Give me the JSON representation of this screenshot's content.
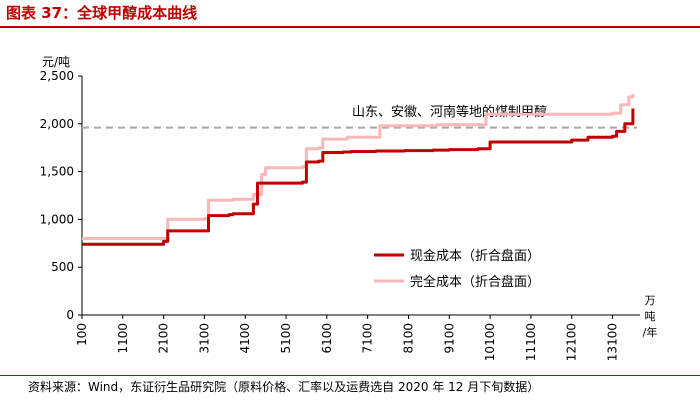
{
  "header": {
    "title": "图表 37：全球甲醇成本曲线"
  },
  "footer": {
    "source": "资料来源：Wind，东证衍生品研究院（原料价格、汇率以及运费选自 2020 年 12 月下旬数据）"
  },
  "colors": {
    "title": "#c00000",
    "cash_cost": "#c00000",
    "full_cost": "#f7b8b8",
    "reference": "#a6a6a6"
  },
  "chart_data": {
    "type": "line",
    "title": "全球甲醇成本曲线",
    "ylabel": "元/吨",
    "xlabel": "万吨/年",
    "ylim": [
      0,
      2500
    ],
    "xlim": [
      100,
      13700
    ],
    "yticks": [
      "0",
      "500",
      "1,000",
      "1,500",
      "2,000",
      "2,500"
    ],
    "ytick_values": [
      0,
      500,
      1000,
      1500,
      2000,
      2500
    ],
    "xticks": [
      "100",
      "1100",
      "2100",
      "3100",
      "4100",
      "5100",
      "6100",
      "7100",
      "8100",
      "9100",
      "10100",
      "11100",
      "12100",
      "13100"
    ],
    "xtick_values": [
      100,
      1100,
      2100,
      3100,
      4100,
      5100,
      6100,
      7100,
      8100,
      9100,
      10100,
      11100,
      12100,
      13100
    ],
    "grid": false,
    "legend_position": "lower-right",
    "reference_line": {
      "label": "山东、安徽、河南等地的煤制甲醇",
      "y": 1960
    },
    "series": [
      {
        "name": "现金成本（折合盘面）",
        "style": "step",
        "x": [
          100,
          2100,
          2200,
          3100,
          3200,
          3700,
          3800,
          4300,
          4400,
          5500,
          5600,
          5900,
          6000,
          6500,
          6700,
          7300,
          8000,
          8700,
          9100,
          9800,
          10100,
          12100,
          12500,
          13100,
          13200,
          13400,
          13600
        ],
        "y": [
          740,
          770,
          880,
          880,
          1040,
          1050,
          1060,
          1160,
          1380,
          1390,
          1600,
          1610,
          1700,
          1705,
          1710,
          1715,
          1720,
          1725,
          1730,
          1740,
          1810,
          1830,
          1860,
          1870,
          1920,
          2000,
          2160
        ]
      },
      {
        "name": "完全成本（折合盘面）",
        "style": "step",
        "x": [
          100,
          2100,
          2200,
          3100,
          3200,
          3800,
          4300,
          4500,
          4600,
          5500,
          5600,
          5900,
          6000,
          6600,
          7400,
          8800,
          10000,
          13100,
          13300,
          13500,
          13600
        ],
        "y": [
          800,
          800,
          1000,
          1010,
          1200,
          1210,
          1260,
          1470,
          1540,
          1550,
          1740,
          1750,
          1840,
          1860,
          1980,
          1990,
          2100,
          2110,
          2200,
          2280,
          2310
        ]
      }
    ]
  }
}
